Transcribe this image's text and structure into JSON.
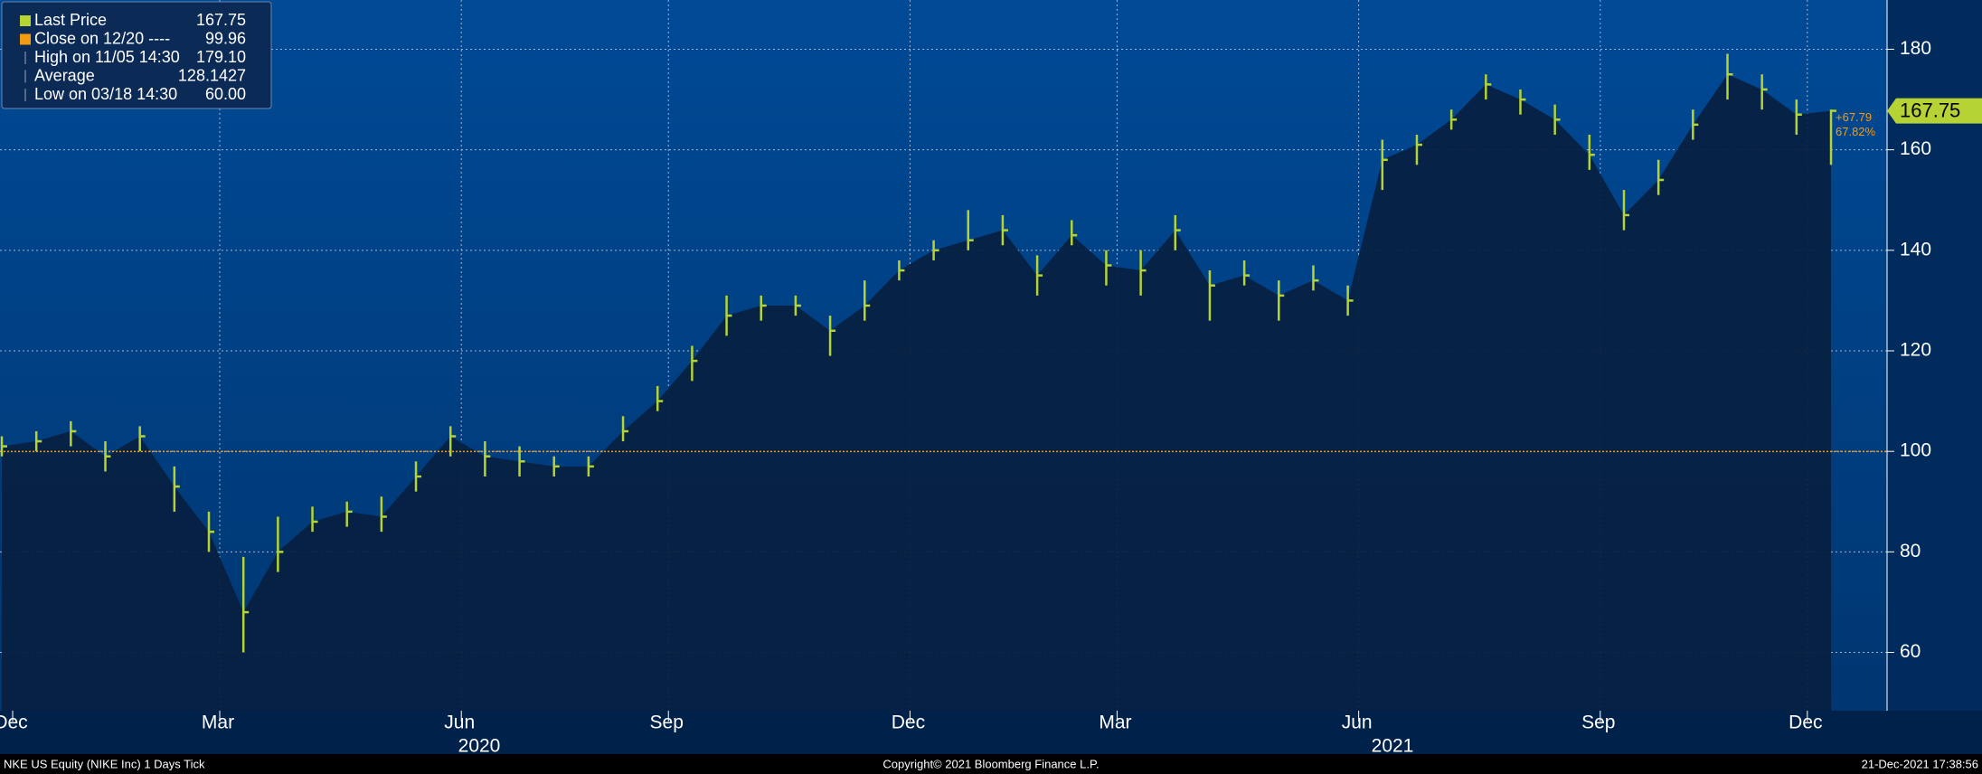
{
  "chart_data": {
    "type": "ohlc",
    "categories": [
      "Dec",
      null,
      null,
      null,
      null,
      null,
      "Mar",
      null,
      null,
      null,
      null,
      null,
      null,
      "Jun",
      null,
      null,
      null,
      null,
      null,
      "Sep",
      null,
      null,
      null,
      null,
      null,
      null,
      "Dec",
      null,
      null,
      null,
      null,
      null,
      "Mar",
      null,
      null,
      null,
      null,
      null,
      null,
      "Jun",
      null,
      null,
      null,
      null,
      null,
      null,
      "Sep",
      null,
      null,
      null,
      null,
      null,
      "Dec",
      null
    ],
    "close": [
      101,
      102,
      104,
      99,
      103,
      93,
      84,
      68,
      80,
      86,
      88,
      87,
      95,
      103,
      99,
      98,
      97,
      97,
      104,
      110,
      118,
      127,
      129,
      129,
      124,
      129,
      136,
      140,
      142,
      144,
      135,
      143,
      137,
      136,
      144,
      133,
      135,
      131,
      134,
      130,
      158,
      161,
      166,
      173,
      170,
      166,
      159,
      147,
      154,
      165,
      175,
      172,
      167,
      167.75
    ],
    "high": [
      103,
      104,
      106,
      102,
      105,
      97,
      88,
      79,
      87,
      89,
      90,
      91,
      98,
      105,
      102,
      101,
      99,
      99,
      107,
      113,
      121,
      131,
      131,
      131,
      127,
      134,
      138,
      142,
      148,
      147,
      139,
      146,
      140,
      140,
      147,
      136,
      138,
      134,
      137,
      133,
      162,
      163,
      168,
      175,
      172,
      169,
      163,
      152,
      158,
      168,
      179.1,
      175,
      170,
      168
    ],
    "low": [
      99,
      100,
      101,
      96,
      100,
      88,
      80,
      60,
      76,
      84,
      85,
      84,
      92,
      99,
      95,
      95,
      95,
      95,
      102,
      108,
      114,
      123,
      126,
      127,
      119,
      126,
      134,
      138,
      140,
      141,
      131,
      141,
      133,
      131,
      140,
      126,
      133,
      126,
      132,
      127,
      152,
      157,
      164,
      170,
      167,
      163,
      156,
      144,
      151,
      162,
      170,
      168,
      163,
      157
    ],
    "color": "#b5d334",
    "ylim": [
      48.4,
      189.8
    ],
    "yticks": [
      60,
      80,
      100,
      120,
      140,
      160,
      180
    ],
    "grid": true,
    "years": [
      "2020",
      "2021"
    ],
    "reference_line": {
      "value": 99.96,
      "color": "#f39c12"
    },
    "legend": [
      {
        "name": "Last Price",
        "color": "#b5d334",
        "value": {
          "value": 167.75,
          "label": "167.75"
        }
      },
      {
        "name": "Close on 12/20 ----",
        "color": "#f39c12",
        "value": {
          "value": 99.96,
          "label": "99.96"
        }
      },
      {
        "name": "High on 11/05 14:30",
        "value": {
          "value": 179.1,
          "label": "179.10"
        }
      },
      {
        "name": "Average",
        "value": 128.1427
      },
      {
        "name": "Low on 03/18 14:30",
        "value": {
          "value": 60,
          "label": "60.00"
        }
      }
    ],
    "last_tag": {
      "value": 167.75,
      "label": "167.75"
    },
    "change": {
      "value": 67.79,
      "label": "+67.79"
    },
    "change_pct": {
      "value": 67.82,
      "label": "67.82%"
    },
    "footer": {
      "left": "NKE US Equity (NIKE Inc) 1 Days  Tick",
      "center": "Copyright© 2021 Bloomberg Finance L.P.",
      "right": "21-Dec-2021 17:38:56"
    }
  }
}
